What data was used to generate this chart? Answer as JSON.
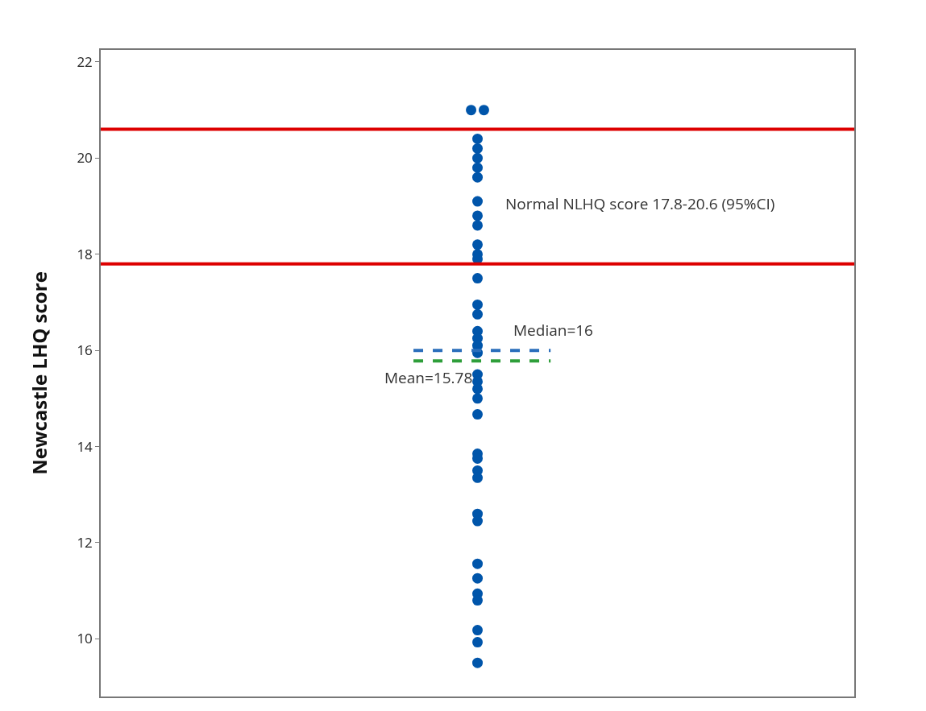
{
  "chart_data": {
    "type": "scatter",
    "ylabel": "Newcastle LHQ score",
    "categories": [
      null
    ],
    "ylim": [
      8.8,
      22.25
    ],
    "yticks": [
      10,
      12,
      14,
      16,
      18,
      20,
      22
    ],
    "tick_labels": "y",
    "grid": false,
    "marker": "circle",
    "series": [
      {
        "color": "#0055aa",
        "x": [
          null,
          null,
          null,
          null,
          null,
          null,
          null,
          null,
          null,
          null,
          null,
          null,
          null,
          null,
          null,
          null,
          null,
          null,
          null,
          null,
          null,
          null,
          null,
          null,
          null,
          null,
          null,
          null,
          null,
          null,
          null,
          null,
          null,
          null,
          null,
          null,
          null,
          null
        ],
        "values": [
          21,
          21,
          20.4,
          20.2,
          20,
          19.8,
          19.6,
          19.1,
          18.8,
          18.6,
          18.2,
          18,
          17.9,
          17.5,
          16.95,
          16.75,
          16.4,
          16.25,
          16.1,
          15.95,
          15.5,
          15.35,
          15.2,
          15,
          14.67,
          13.85,
          13.75,
          13.5,
          13.35,
          12.6,
          12.45,
          11.56,
          11.26,
          10.94,
          10.8,
          10.18,
          9.93,
          9.5
        ]
      }
    ],
    "ref_lines": [
      {
        "axis": "y",
        "value": 20.6,
        "color": "#dd0000",
        "line_style": "solid"
      },
      {
        "axis": "y",
        "value": 17.8,
        "color": "#dd0000",
        "line_style": "solid"
      },
      {
        "axis": "y",
        "value": 16,
        "color": "#2a6ebb",
        "line_style": "dashed",
        "label": "Median=16"
      },
      {
        "axis": "y",
        "value": 15.78,
        "color": "#2e9e3a",
        "line_style": "dashed",
        "label": "Mean=15.78"
      }
    ],
    "annotations": [
      "Normal NLHQ score 17.8-20.6 (95%CI)"
    ]
  }
}
